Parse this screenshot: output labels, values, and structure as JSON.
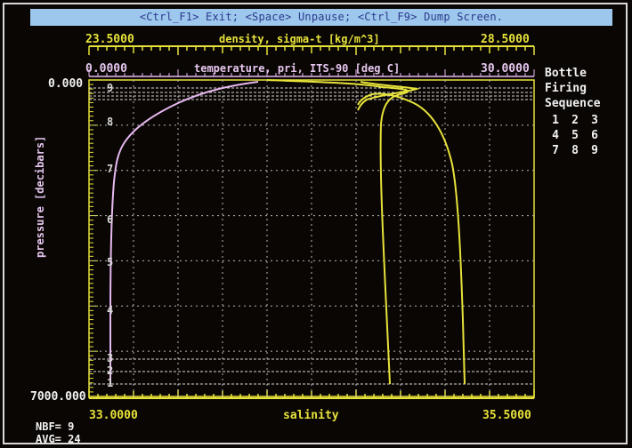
{
  "status_bar": "<Ctrl_F1> Exit; <Space> Unpause; <Ctrl_F9> Dump Screen.",
  "density_axis": {
    "label": "density, sigma-t [kg/m^3]",
    "min": "23.5000",
    "max": "28.5000"
  },
  "temperature_axis": {
    "label": "temperature, pri, ITS-90 [deg C]",
    "min": "0.0000",
    "max": "30.0000"
  },
  "salinity_axis": {
    "label": "salinity",
    "min": "33.0000",
    "max": "35.5000"
  },
  "pressure_axis": {
    "label": "pressure [decibars]",
    "top": "0.000",
    "bottom": "7000.000"
  },
  "bottle_panel": {
    "line1": "Bottle",
    "line2": "Firing",
    "line3": "Sequence",
    "numbers": [
      "1",
      "2",
      "3",
      "4",
      "5",
      "6",
      "7",
      "8",
      "9"
    ]
  },
  "bottle_markers": [
    "9",
    "8",
    "7",
    "6",
    "5",
    "4",
    "3",
    "2",
    "1"
  ],
  "footer": {
    "nbf": "NBF= 9",
    "avg": "AVG= 24"
  },
  "colors": {
    "status_bg": "#9ec7ee",
    "axis": "#e6e23a",
    "temperature": "#e6b8f0",
    "salinity_density": "#e6e23a",
    "grid": "#c8c8c8"
  }
}
